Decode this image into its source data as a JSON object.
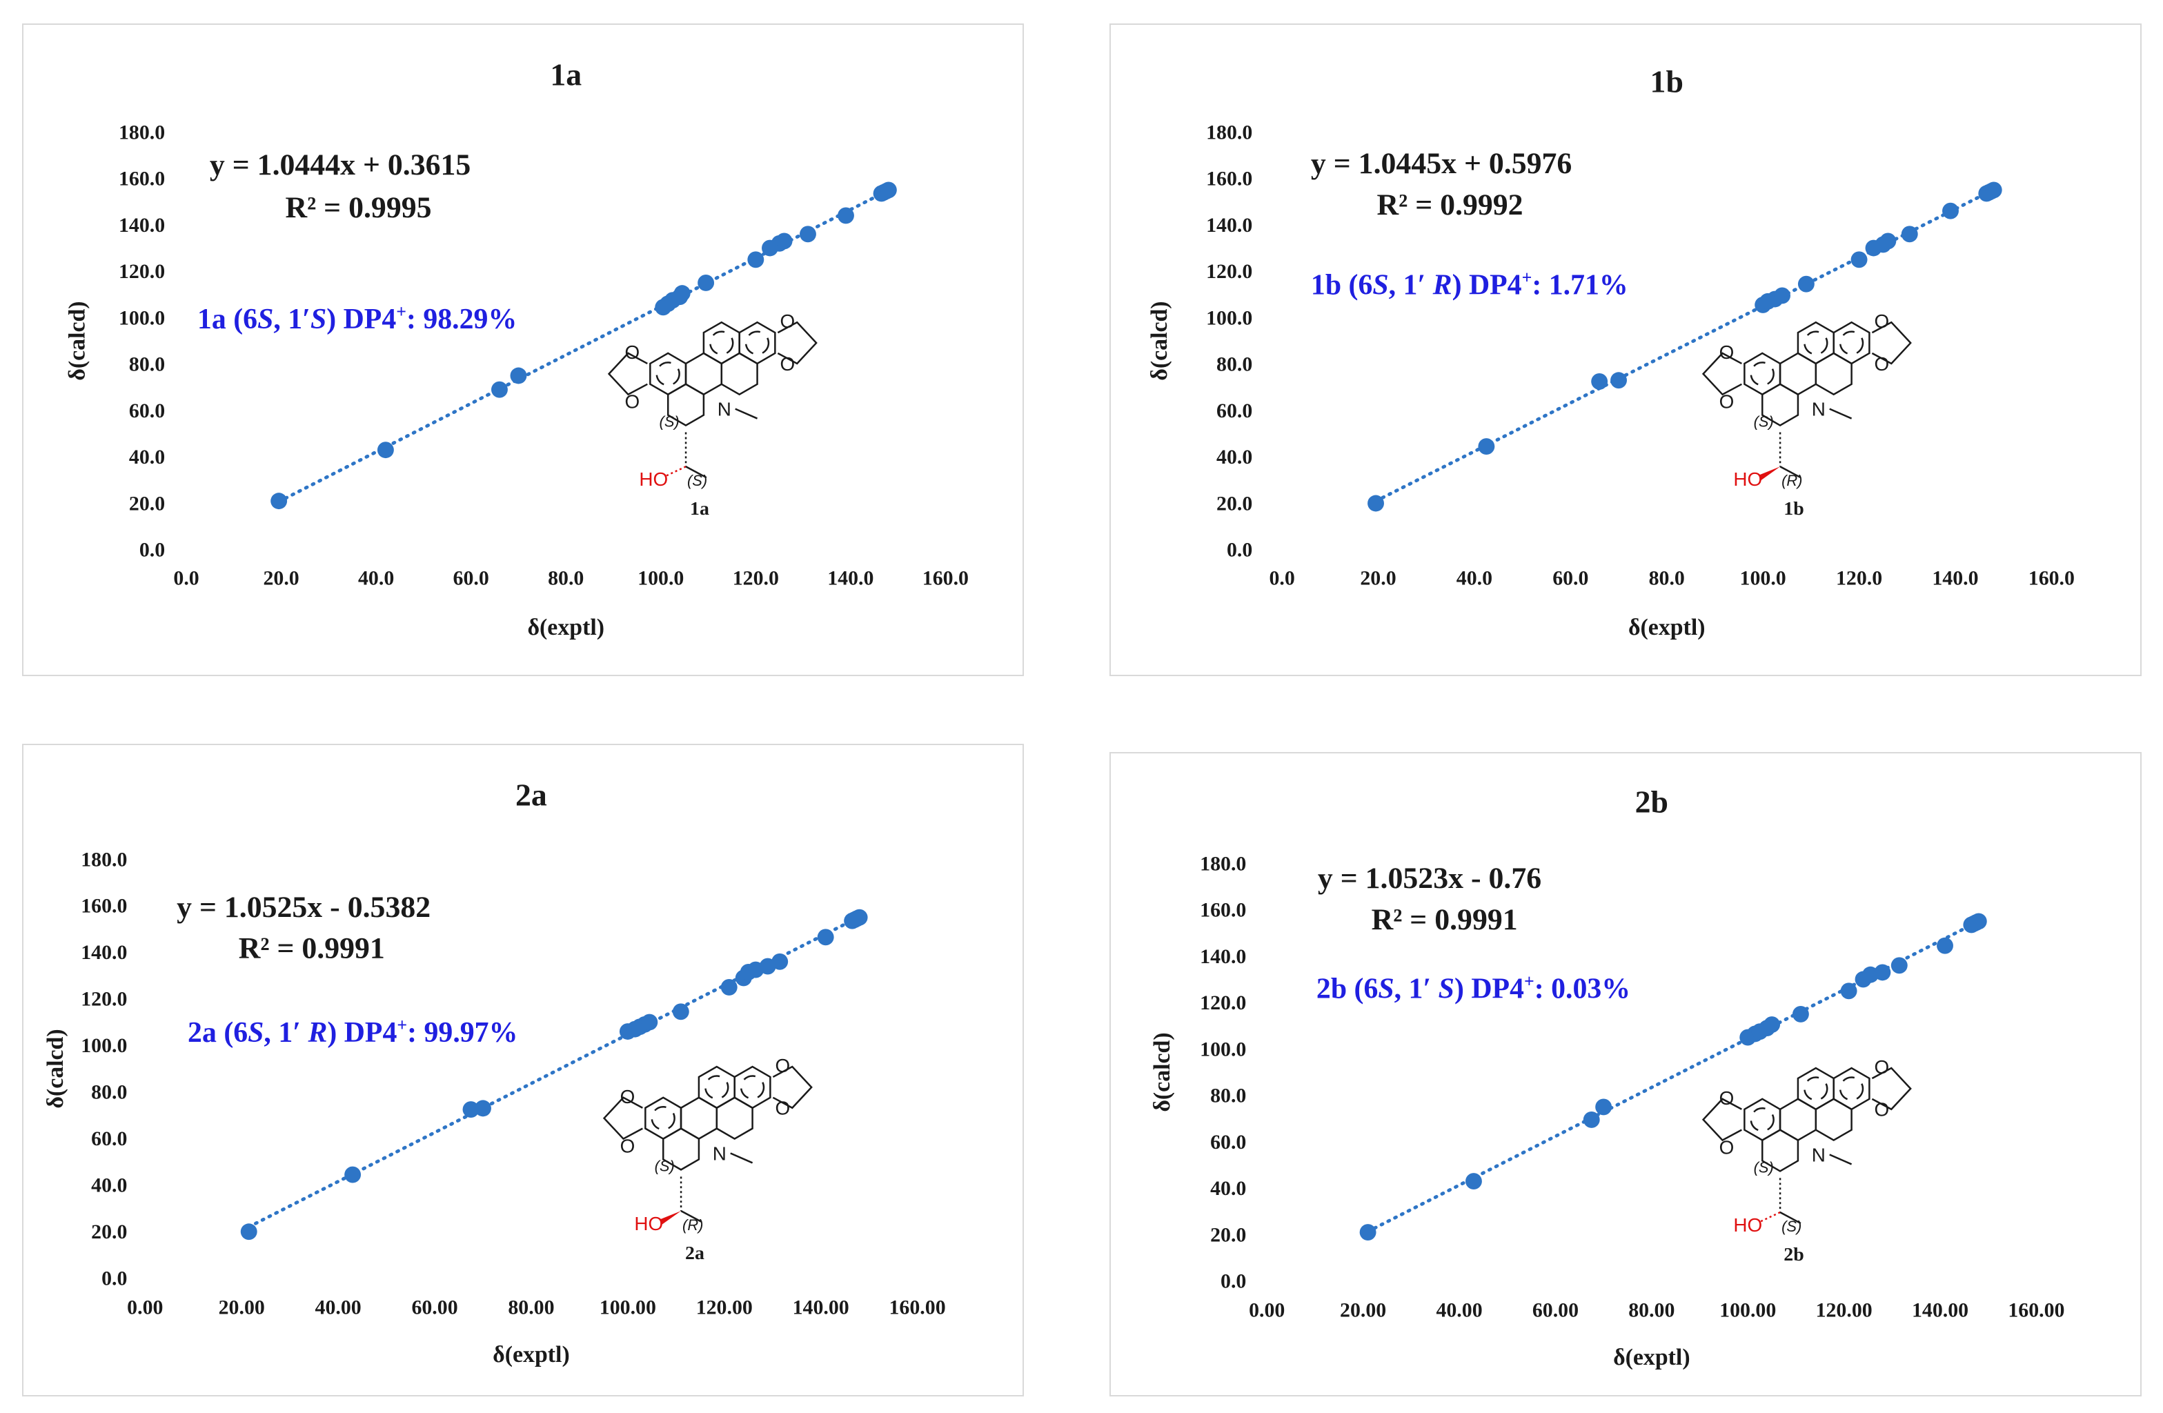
{
  "colors": {
    "point": "#2e75c6",
    "trendline": "#2e75c6",
    "dp4_text": "#1f1fe0",
    "hydroxyl": "#e01010"
  },
  "chart_data": [
    {
      "type": "scatter",
      "title": "1a",
      "xlabel": "δ(exptl)",
      "ylabel": "δ(calcd)",
      "xlim": [
        0,
        160
      ],
      "ylim": [
        0,
        180
      ],
      "x_ticks": [
        "0.0",
        "20.0",
        "40.0",
        "60.0",
        "80.0",
        "100.0",
        "120.0",
        "140.0",
        "160.0"
      ],
      "y_ticks": [
        "0.0",
        "20.0",
        "40.0",
        "60.0",
        "80.0",
        "100.0",
        "120.0",
        "140.0",
        "160.0",
        "180.0"
      ],
      "grid": false,
      "trendline": {
        "style": "dotted",
        "slope": 1.0444,
        "intercept": 0.3615
      },
      "equation": "y = 1.0444x + 0.3615",
      "r2": "R² = 0.9995",
      "dp4": {
        "prefix": "1a (6",
        "s1": "S",
        "mid": ", 1′",
        "s2": "S",
        "suffix": ") DP4",
        "sup": "+",
        "value": ": 98.29%"
      },
      "structure": {
        "label": "1a",
        "c6": "(S)",
        "c1": "(S)",
        "ho": "HO",
        "n": "N",
        "o": "O",
        "wedge": "hash"
      },
      "x": [
        19.5,
        42.0,
        66.0,
        70.0,
        100.5,
        101.5,
        102.5,
        104.0,
        104.5,
        109.5,
        120.0,
        123.0,
        125.0,
        126.0,
        131.0,
        139.0,
        146.5,
        147.0,
        147.5,
        148.0
      ],
      "y": [
        21.0,
        43.0,
        69.0,
        75.0,
        104.5,
        106.0,
        107.5,
        109.0,
        110.5,
        115.0,
        125.0,
        130.0,
        132.0,
        133.0,
        136.0,
        144.0,
        153.5,
        154.0,
        154.5,
        155.0
      ]
    },
    {
      "type": "scatter",
      "title": "1b",
      "xlabel": "δ(exptl)",
      "ylabel": "δ(calcd)",
      "xlim": [
        0,
        160
      ],
      "ylim": [
        0,
        180
      ],
      "x_ticks": [
        "0.0",
        "20.0",
        "40.0",
        "60.0",
        "80.0",
        "100.0",
        "120.0",
        "140.0",
        "160.0"
      ],
      "y_ticks": [
        "0.0",
        "20.0",
        "40.0",
        "60.0",
        "80.0",
        "100.0",
        "120.0",
        "140.0",
        "160.0",
        "180.0"
      ],
      "grid": false,
      "trendline": {
        "style": "dotted",
        "slope": 1.0445,
        "intercept": 0.5976
      },
      "equation": "y = 1.0445x + 0.5976",
      "r2": "R² = 0.9992",
      "dp4": {
        "prefix": "1b (6",
        "s1": "S",
        "mid": ", 1′ ",
        "s2": "R",
        "suffix": ") DP4",
        "sup": "+",
        "value": ": 1.71%"
      },
      "structure": {
        "label": "1b",
        "c6": "(S)",
        "c1": "(R)",
        "ho": "HO",
        "n": "N",
        "o": "O",
        "wedge": "bold"
      },
      "x": [
        19.5,
        42.5,
        66.0,
        70.0,
        100.0,
        101.0,
        102.5,
        104.0,
        109.0,
        120.0,
        123.0,
        125.0,
        126.0,
        130.5,
        139.0,
        146.5,
        147.0,
        147.5,
        148.0
      ],
      "y": [
        20.0,
        44.5,
        72.5,
        73.0,
        105.5,
        107.0,
        108.0,
        109.5,
        114.5,
        125.0,
        130.0,
        131.5,
        133.0,
        136.0,
        146.0,
        153.5,
        154.0,
        154.5,
        155.0
      ]
    },
    {
      "type": "scatter",
      "title": "2a",
      "xlabel": "δ(exptl)",
      "ylabel": "δ(calcd)",
      "xlim": [
        0,
        160
      ],
      "ylim": [
        0,
        180
      ],
      "x_ticks": [
        "0.00",
        "20.00",
        "40.00",
        "60.00",
        "80.00",
        "100.00",
        "120.00",
        "140.00",
        "160.00"
      ],
      "y_ticks": [
        "0.0",
        "20.0",
        "40.0",
        "60.0",
        "80.0",
        "100.0",
        "120.0",
        "140.0",
        "160.0",
        "180.0"
      ],
      "grid": false,
      "trendline": {
        "style": "dotted",
        "slope": 1.0525,
        "intercept": -0.5382
      },
      "equation": "y = 1.0525x - 0.5382",
      "r2": "R² = 0.9991",
      "dp4": {
        "prefix": "2a (6",
        "s1": "S",
        "mid": ", 1′ ",
        "s2": "R",
        "suffix": ") DP4",
        "sup": "+",
        "value": ": 99.97%"
      },
      "structure": {
        "label": "2a",
        "c6": "(S)",
        "c1": "(R)",
        "ho": "HO",
        "n": "N",
        "o": "O",
        "wedge": "bold"
      },
      "x": [
        21.5,
        43.0,
        67.5,
        70.0,
        100.0,
        101.5,
        102.5,
        103.5,
        104.5,
        111.0,
        121.0,
        124.0,
        125.0,
        126.5,
        129.0,
        131.5,
        141.0,
        146.5,
        147.0,
        147.5,
        148.0
      ],
      "y": [
        20.0,
        44.5,
        72.5,
        73.0,
        106.0,
        107.0,
        108.0,
        109.0,
        110.0,
        114.5,
        125.0,
        129.0,
        131.5,
        132.5,
        134.0,
        136.0,
        146.5,
        153.5,
        154.0,
        154.5,
        155.0
      ]
    },
    {
      "type": "scatter",
      "title": "2b",
      "xlabel": "δ(exptl)",
      "ylabel": "δ(calcd)",
      "xlim": [
        0,
        160
      ],
      "ylim": [
        0,
        180
      ],
      "x_ticks": [
        "0.00",
        "20.00",
        "40.00",
        "60.00",
        "80.00",
        "100.00",
        "120.00",
        "140.00",
        "160.00"
      ],
      "y_ticks": [
        "0.0",
        "20.0",
        "40.0",
        "60.0",
        "80.0",
        "100.0",
        "120.0",
        "140.0",
        "160.0",
        "180.0"
      ],
      "grid": false,
      "trendline": {
        "style": "dotted",
        "slope": 1.0523,
        "intercept": -0.76
      },
      "equation": "y = 1.0523x - 0.76",
      "r2": "R² = 0.9991",
      "dp4": {
        "prefix": "2b (6",
        "s1": "S",
        "mid": ", 1′ ",
        "s2": "S",
        "suffix": ") DP4",
        "sup": "+",
        "value": ": 0.03%"
      },
      "structure": {
        "label": "2b",
        "c6": "(S)",
        "c1": "(S)",
        "ho": "HO",
        "n": "N",
        "o": "O",
        "wedge": "hash"
      },
      "x": [
        21.0,
        43.0,
        67.5,
        70.0,
        100.0,
        101.5,
        102.5,
        104.0,
        105.0,
        111.0,
        121.0,
        124.0,
        125.5,
        128.0,
        131.5,
        141.0,
        146.5,
        147.0,
        147.5,
        148.0
      ],
      "y": [
        21.0,
        43.0,
        69.5,
        75.0,
        105.0,
        106.5,
        107.5,
        109.0,
        110.5,
        115.0,
        125.0,
        130.0,
        132.0,
        133.0,
        136.0,
        144.5,
        153.5,
        154.0,
        154.5,
        155.0
      ]
    }
  ]
}
